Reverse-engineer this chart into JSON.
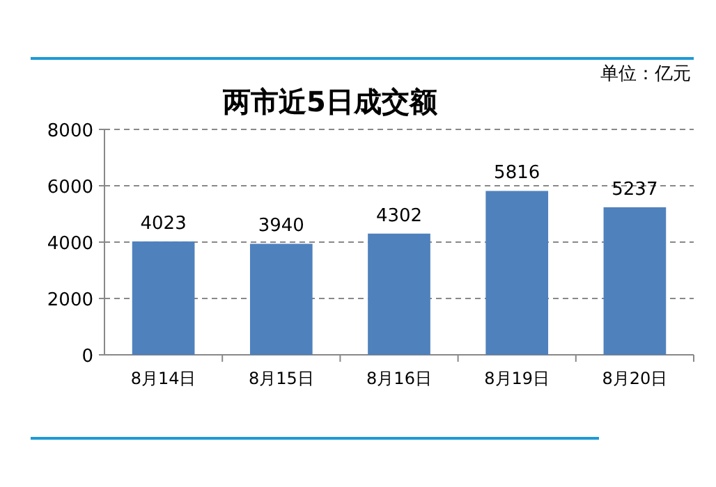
{
  "chart_data": {
    "type": "bar",
    "title": "两市近5日成交额",
    "annotations": [
      "单位：亿元"
    ],
    "categories": [
      "8月14日",
      "8月15日",
      "8月16日",
      "8月19日",
      "8月20日"
    ],
    "values": [
      4023,
      3940,
      4302,
      5816,
      5237
    ],
    "color": "#4f81bd",
    "ylim": [
      0,
      8000
    ],
    "yticks": [
      0,
      2000,
      4000,
      6000,
      8000
    ],
    "grid": "y",
    "data_labels": true
  }
}
